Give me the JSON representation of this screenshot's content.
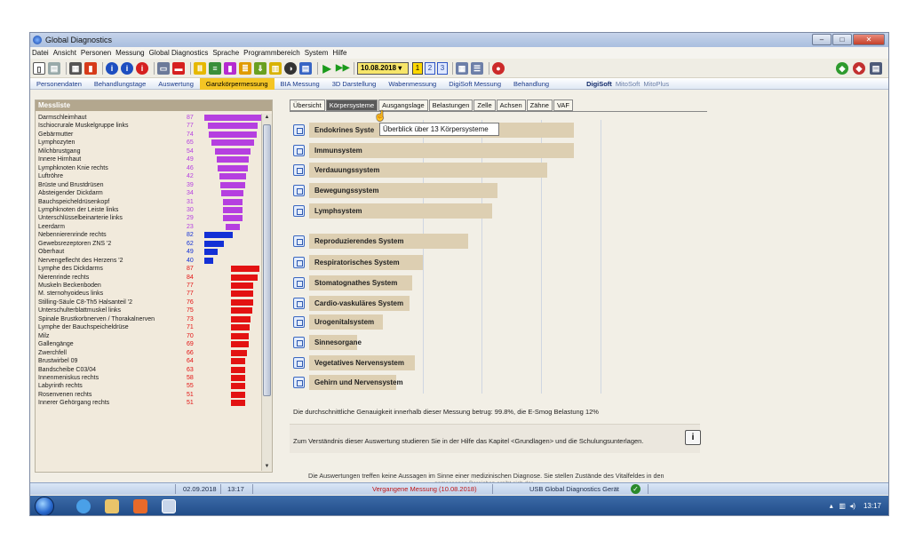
{
  "window": {
    "title": "Global Diagnostics"
  },
  "menu": [
    "Datei",
    "Ansicht",
    "Personen",
    "Messung",
    "Global Diagnostics",
    "Sprache",
    "Programmbereich",
    "System",
    "Hilfe"
  ],
  "toolbar": {
    "date": "10.08.2018",
    "pages": [
      "1",
      "2",
      "3"
    ]
  },
  "nav_tabs": [
    "Personendaten",
    "Behandlungstage",
    "Auswertung",
    "Ganzkörpermessung",
    "BIA Messung",
    "3D Darstellung",
    "Wabenmessung",
    "DigiSoft Messung",
    "Behandlung"
  ],
  "nav_active": "Ganzkörpermessung",
  "nav_right": {
    "digisoft": "DigiSoft",
    "mitosoft": "MitoSoft",
    "mitoplus": "MitoPlus"
  },
  "messliste": {
    "title": "Messliste",
    "colors": {
      "violet": "#b53fe0",
      "blue": "#1330d6",
      "red": "#e31212"
    },
    "items": [
      {
        "label": "Darmschleimhaut",
        "value": "87",
        "color": "violet"
      },
      {
        "label": "Ischiocrurale Muskelgruppe links",
        "value": "77",
        "color": "violet"
      },
      {
        "label": "Gebärmutter",
        "value": "74",
        "color": "violet"
      },
      {
        "label": "Lymphozyten",
        "value": "65",
        "color": "violet"
      },
      {
        "label": "Milchbrustgang",
        "value": "54",
        "color": "violet"
      },
      {
        "label": "Innere Hirnhaut",
        "value": "49",
        "color": "violet"
      },
      {
        "label": "Lymphknoten Knie rechts",
        "value": "46",
        "color": "violet"
      },
      {
        "label": "Luftröhre",
        "value": "42",
        "color": "violet"
      },
      {
        "label": "Brüste und Brustdrüsen",
        "value": "39",
        "color": "violet"
      },
      {
        "label": "Absteigender Dickdarm",
        "value": "34",
        "color": "violet"
      },
      {
        "label": "Bauchspeicheldrüsenkopf",
        "value": "31",
        "color": "violet"
      },
      {
        "label": "Lymphknoten der Leiste links",
        "value": "30",
        "color": "violet"
      },
      {
        "label": "Unterschlüsselbeinarterie links",
        "value": "29",
        "color": "violet"
      },
      {
        "label": "Leerdarm",
        "value": "23",
        "color": "violet"
      },
      {
        "label": "Nebennierenrinde rechts",
        "value": "82",
        "color": "blue"
      },
      {
        "label": "Gewebsrezeptoren ZNS '2",
        "value": "62",
        "color": "blue"
      },
      {
        "label": "Oberhaut",
        "value": "49",
        "color": "blue"
      },
      {
        "label": "Nervengeflecht des Herzens '2",
        "value": "40",
        "color": "blue"
      },
      {
        "label": "Lymphe des Dickdarms",
        "value": "87",
        "color": "red"
      },
      {
        "label": "Nierenrinde rechts",
        "value": "84",
        "color": "red"
      },
      {
        "label": "Muskeln Beckenboden",
        "value": "77",
        "color": "red"
      },
      {
        "label": "M. sternohyoideus links",
        "value": "77",
        "color": "red"
      },
      {
        "label": "Stilling-Säule C8-Th5 Halsanteil '2",
        "value": "76",
        "color": "red"
      },
      {
        "label": "Unterschulterblattmuskel links",
        "value": "75",
        "color": "red"
      },
      {
        "label": "Spinale Brustkorbnerven / Thorakalnerven",
        "value": "73",
        "color": "red"
      },
      {
        "label": "Lymphe der Bauchspeicheldrüse",
        "value": "71",
        "color": "red"
      },
      {
        "label": "Milz",
        "value": "70",
        "color": "red"
      },
      {
        "label": "Gallengänge",
        "value": "69",
        "color": "red"
      },
      {
        "label": "Zwerchfell",
        "value": "66",
        "color": "red"
      },
      {
        "label": "Brustwirbel 09",
        "value": "64",
        "color": "red"
      },
      {
        "label": "Bandscheibe C03/04",
        "value": "63",
        "color": "red"
      },
      {
        "label": "Innenmeniskus rechts",
        "value": "58",
        "color": "red"
      },
      {
        "label": "Labyrinth rechts",
        "value": "55",
        "color": "red"
      },
      {
        "label": "Rosenvenen rechts",
        "value": "51",
        "color": "red"
      },
      {
        "label": "Innerer Gehörgang rechts",
        "value": "51",
        "color": "red"
      }
    ]
  },
  "right_tabs": [
    "Übersicht",
    "Körpersysteme",
    "Ausgangslage",
    "Belastungen",
    "Zelle",
    "Achsen",
    "Zähne",
    "VAF"
  ],
  "right_active": "Körpersysteme",
  "tooltip": "Überblick über 13 Körpersysteme",
  "systems": [
    {
      "label": "Endokrines System",
      "shown_label": "Endokrines Syste",
      "level": 1.0
    },
    {
      "label": "Immunsystem",
      "shown_label": "Immunsystem",
      "level": 1.0
    },
    {
      "label": "Verdauungssystem",
      "shown_label": "Verdauungssystem",
      "level": 0.9
    },
    {
      "label": "Bewegungssystem",
      "shown_label": "Bewegungssystem",
      "level": 0.71
    },
    {
      "label": "Lymphsystem",
      "shown_label": "Lymphsystem",
      "level": 0.69
    },
    {
      "label": "Reproduzierendes System",
      "shown_label": "Reproduzierendes System",
      "level": 0.6
    },
    {
      "label": "Respiratorisches System",
      "shown_label": "Respiratorisches System",
      "level": 0.43
    },
    {
      "label": "Stomatognathes System",
      "shown_label": "Stomatognathes System",
      "level": 0.39
    },
    {
      "label": "Cardio-vaskuläres System",
      "shown_label": "Cardio-vaskuläres System",
      "level": 0.38
    },
    {
      "label": "Urogenitalsystem",
      "shown_label": "Urogenitalsystem",
      "level": 0.28
    },
    {
      "label": "Sinnesorgane",
      "shown_label": "Sinnesorgane",
      "level": 0.18
    },
    {
      "label": "Vegetatives Nervensystem",
      "shown_label": "Vegetatives Nervensystem",
      "level": 0.4
    },
    {
      "label": "Gehirn und Nervensystem",
      "shown_label": "Gehirn und Nervensystem",
      "level": 0.33
    }
  ],
  "accuracy_text": "Die durchschnittliche Genauigkeit innerhalb dieser Messung betrug: 99.8%, die E-Smog Belastung 12%",
  "info_text": "Zum Verständnis dieser Auswertung studieren Sie in der Hilfe das Kapitel <Grundlagen> und die Schulungsunterlagen.",
  "disclaimer": "Die Auswertungen treffen keine Aussagen im Sinne einer medizinischen Diagnose. Sie stellen Zustände des Vitalfeldes in den",
  "disclaimer2": "gemessenen Bereichen ergibt sich dar",
  "status": {
    "date": "02.09.2018",
    "time": "13:17",
    "measurement": "Vergangene Messung (10.08.2018)",
    "device": "USB Global Diagnostics Gerät"
  },
  "taskbar": {
    "clock": "13:17"
  }
}
